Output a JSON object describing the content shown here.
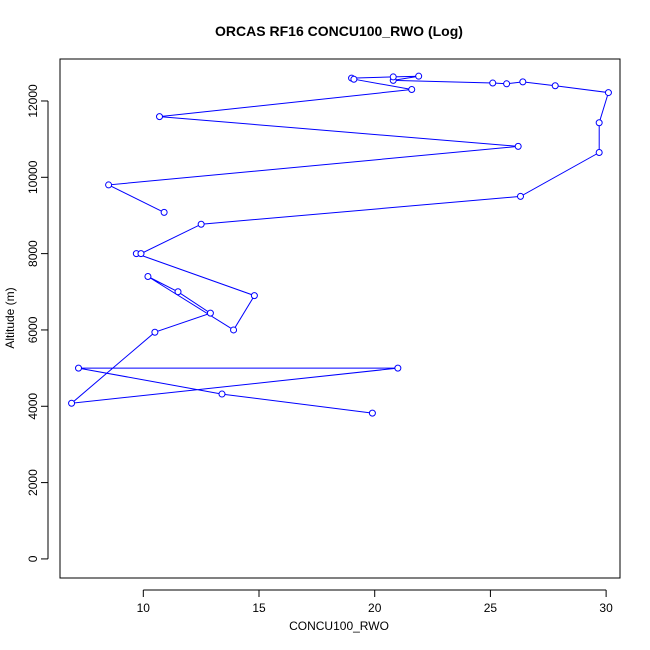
{
  "chart_data": {
    "type": "line",
    "title": "ORCAS RF16 CONCU100_RWO (Log)",
    "xlabel": "CONCU100_RWO",
    "ylabel": "Altitude (m)",
    "xlim": [
      6.4,
      30.6
    ],
    "ylim": [
      -500,
      13100
    ],
    "xticks": [
      10,
      15,
      20,
      25,
      30
    ],
    "yticks": [
      0,
      2000,
      4000,
      6000,
      8000,
      10000,
      12000
    ],
    "line_color": "#0000ff",
    "marker": "open-circle",
    "series": [
      {
        "points": [
          {
            "x": 19.9,
            "y": 3820
          },
          {
            "x": 13.4,
            "y": 4320
          },
          {
            "x": 7.2,
            "y": 5000
          },
          {
            "x": 21.0,
            "y": 5000
          },
          {
            "x": 6.9,
            "y": 4080
          },
          {
            "x": 10.5,
            "y": 5940
          },
          {
            "x": 12.9,
            "y": 6440
          },
          {
            "x": 11.5,
            "y": 7000
          },
          {
            "x": 10.2,
            "y": 7400
          },
          {
            "x": 13.9,
            "y": 6000
          },
          {
            "x": 14.8,
            "y": 6900
          },
          {
            "x": 9.7,
            "y": 8000
          },
          {
            "x": 9.9,
            "y": 8000
          },
          {
            "x": 12.5,
            "y": 8770
          },
          {
            "x": 26.3,
            "y": 9500
          },
          {
            "x": 29.7,
            "y": 10650
          },
          {
            "x": 29.7,
            "y": 11430
          },
          {
            "x": 30.1,
            "y": 12220
          },
          {
            "x": 27.8,
            "y": 12400
          },
          {
            "x": 26.4,
            "y": 12500
          },
          {
            "x": 25.7,
            "y": 12450
          },
          {
            "x": 25.1,
            "y": 12470
          },
          {
            "x": 20.8,
            "y": 12540
          },
          {
            "x": 21.9,
            "y": 12650
          },
          {
            "x": 20.8,
            "y": 12630
          },
          {
            "x": 19.0,
            "y": 12600
          },
          {
            "x": 19.1,
            "y": 12570
          },
          {
            "x": 21.6,
            "y": 12300
          },
          {
            "x": 10.7,
            "y": 11590
          },
          {
            "x": 26.2,
            "y": 10810
          },
          {
            "x": 8.5,
            "y": 9800
          },
          {
            "x": 10.9,
            "y": 9080
          }
        ]
      }
    ]
  }
}
